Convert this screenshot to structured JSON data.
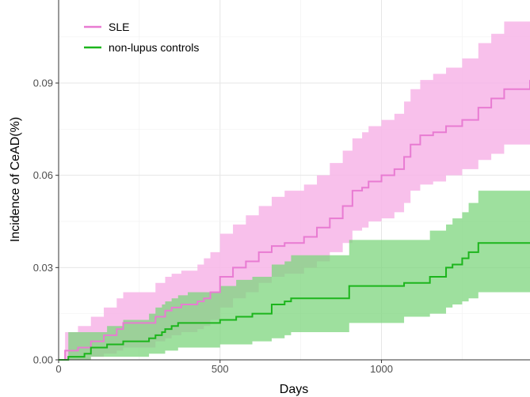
{
  "chart_data": {
    "type": "line",
    "subtype": "step-with-confidence-band",
    "xlabel": "Days",
    "ylabel": "Incidence of CeAD(%)",
    "xlim": [
      0,
      1460
    ],
    "ylim": [
      0,
      0.117
    ],
    "x_ticks": [
      0,
      500,
      1000
    ],
    "x_tick_labels": [
      "0",
      "500",
      "1000"
    ],
    "y_ticks": [
      0,
      0.03,
      0.06,
      0.09
    ],
    "y_tick_labels": [
      "0.00",
      "0.03",
      "0.06",
      "0.09"
    ],
    "grid": true,
    "legend_position": "top-left",
    "series": [
      {
        "name": "SLE",
        "color": "#e87bd2",
        "band_color": "#f7b5e8",
        "x": [
          0,
          20,
          60,
          100,
          140,
          180,
          200,
          250,
          300,
          330,
          350,
          380,
          400,
          430,
          450,
          470,
          500,
          540,
          580,
          620,
          660,
          700,
          760,
          800,
          840,
          880,
          910,
          940,
          960,
          1000,
          1040,
          1070,
          1090,
          1120,
          1160,
          1200,
          1250,
          1300,
          1340,
          1380,
          1460
        ],
        "y": [
          0,
          0.003,
          0.004,
          0.006,
          0.008,
          0.01,
          0.012,
          0.012,
          0.014,
          0.016,
          0.017,
          0.018,
          0.018,
          0.019,
          0.02,
          0.022,
          0.027,
          0.03,
          0.032,
          0.035,
          0.037,
          0.038,
          0.04,
          0.043,
          0.046,
          0.05,
          0.055,
          0.056,
          0.058,
          0.06,
          0.062,
          0.066,
          0.07,
          0.073,
          0.074,
          0.076,
          0.078,
          0.082,
          0.085,
          0.088,
          0.091
        ],
        "lower": [
          0,
          0.0,
          0.0,
          0.001,
          0.002,
          0.003,
          0.004,
          0.004,
          0.006,
          0.007,
          0.008,
          0.009,
          0.009,
          0.01,
          0.011,
          0.013,
          0.017,
          0.02,
          0.022,
          0.025,
          0.027,
          0.028,
          0.03,
          0.032,
          0.035,
          0.038,
          0.042,
          0.043,
          0.045,
          0.046,
          0.048,
          0.051,
          0.055,
          0.057,
          0.058,
          0.06,
          0.062,
          0.065,
          0.067,
          0.07,
          0.072
        ],
        "upper": [
          0,
          0.009,
          0.011,
          0.014,
          0.017,
          0.02,
          0.022,
          0.022,
          0.025,
          0.027,
          0.028,
          0.029,
          0.029,
          0.031,
          0.033,
          0.035,
          0.041,
          0.044,
          0.047,
          0.05,
          0.053,
          0.055,
          0.057,
          0.06,
          0.064,
          0.068,
          0.072,
          0.074,
          0.076,
          0.078,
          0.08,
          0.084,
          0.088,
          0.091,
          0.093,
          0.095,
          0.098,
          0.103,
          0.106,
          0.11,
          0.117
        ]
      },
      {
        "name": "non-lupus controls",
        "color": "#1cb51c",
        "band_color": "#7dd67d",
        "x": [
          0,
          30,
          80,
          100,
          150,
          200,
          280,
          300,
          320,
          330,
          340,
          350,
          370,
          400,
          500,
          550,
          600,
          660,
          700,
          720,
          900,
          1000,
          1070,
          1150,
          1200,
          1220,
          1250,
          1270,
          1300,
          1460
        ],
        "y": [
          0,
          0.001,
          0.002,
          0.004,
          0.005,
          0.006,
          0.007,
          0.008,
          0.009,
          0.01,
          0.01,
          0.011,
          0.012,
          0.012,
          0.013,
          0.014,
          0.015,
          0.018,
          0.019,
          0.02,
          0.024,
          0.024,
          0.025,
          0.027,
          0.03,
          0.031,
          0.033,
          0.035,
          0.038,
          0.038
        ],
        "lower": [
          0,
          0.0,
          0.0,
          0.001,
          0.001,
          0.001,
          0.002,
          0.002,
          0.002,
          0.003,
          0.003,
          0.003,
          0.004,
          0.004,
          0.005,
          0.005,
          0.006,
          0.007,
          0.008,
          0.009,
          0.012,
          0.012,
          0.014,
          0.015,
          0.017,
          0.018,
          0.019,
          0.02,
          0.022,
          0.027
        ],
        "upper": [
          0,
          0.009,
          0.009,
          0.009,
          0.011,
          0.013,
          0.015,
          0.017,
          0.018,
          0.019,
          0.019,
          0.02,
          0.021,
          0.022,
          0.024,
          0.026,
          0.027,
          0.031,
          0.032,
          0.034,
          0.039,
          0.039,
          0.039,
          0.042,
          0.044,
          0.046,
          0.048,
          0.051,
          0.055,
          0.056
        ]
      }
    ]
  }
}
